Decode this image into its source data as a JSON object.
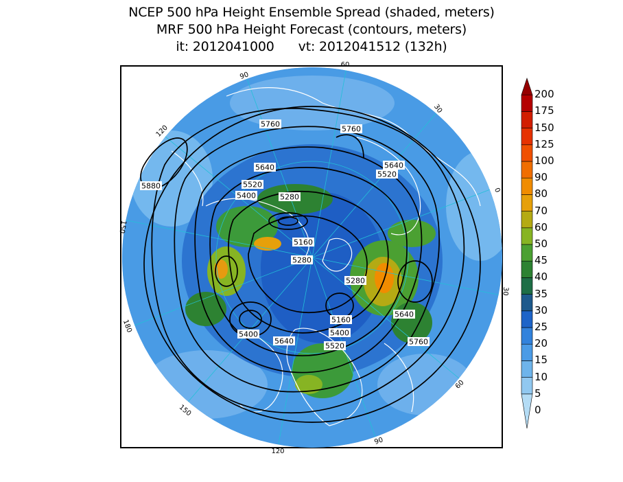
{
  "title": {
    "line1": "NCEP 500 hPa Height Ensemble Spread (shaded, meters)",
    "line2": "MRF 500 hPa Height Forecast (contours, meters)",
    "line3": "it: 2012041000      vt: 2012041512 (132h)"
  },
  "map": {
    "projection": "north-polar-stereographic",
    "longitude_labels": [
      "60",
      "30",
      "0",
      "30",
      "60",
      "90",
      "120",
      "150",
      "180",
      "150",
      "120",
      "90"
    ],
    "contour_labels": [
      "5760",
      "5760",
      "5640",
      "5640",
      "5520",
      "5520",
      "5400",
      "5280",
      "5160",
      "5280",
      "5280",
      "5160",
      "5400",
      "5520",
      "5640",
      "5760",
      "5880",
      "5400",
      "5640"
    ]
  },
  "colorbar": {
    "levels": [
      "0",
      "5",
      "10",
      "15",
      "20",
      "25",
      "30",
      "35",
      "40",
      "45",
      "50",
      "60",
      "70",
      "80",
      "90",
      "100",
      "125",
      "150",
      "175",
      "200"
    ],
    "colors": [
      "#b4dcf5",
      "#91c8f0",
      "#6eb4eb",
      "#4b9be6",
      "#3282dc",
      "#1e64c8",
      "#1e5a8c",
      "#1e6e46",
      "#2d8232",
      "#4ba032",
      "#87b423",
      "#b4aa14",
      "#e6a00a",
      "#f08c00",
      "#f06e00",
      "#f05000",
      "#e63200",
      "#d21e00",
      "#b40000",
      "#960000"
    ]
  }
}
